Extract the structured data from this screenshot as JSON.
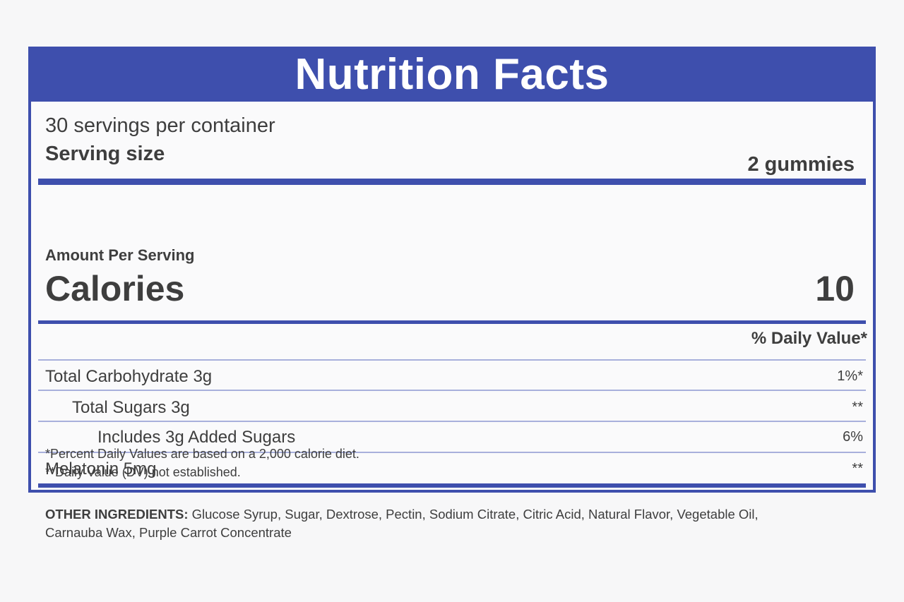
{
  "label": {
    "title": "Nutrition Facts",
    "servings_per_container": "30 servings per container",
    "serving_size_label": "Serving size",
    "serving_size_value": "2 gummies",
    "amount_per_serving": "Amount Per Serving",
    "calories_label": "Calories",
    "calories_value": "10",
    "daily_value_header": "% Daily Value*",
    "rows": [
      {
        "label": "Total Carbohydrate 3g",
        "value": "1%*"
      },
      {
        "label": "Total Sugars 3g",
        "value": "**"
      },
      {
        "label": "Includes 3g Added Sugars",
        "value": "6%"
      },
      {
        "label": "Melatonin 5mg",
        "value": "**"
      }
    ],
    "footnotes": [
      "*Percent Daily Values are based on a 2,000 calorie diet.",
      "**Daily Value (DV) not established."
    ]
  },
  "ingredients": {
    "heading": "OTHER INGREDIENTS:",
    "text": " Glucose Syrup, Sugar, Dextrose, Pectin, Sodium Citrate, Citric Acid, Natural Flavor, Vegetable Oil, Carnauba Wax, Purple Carrot Concentrate"
  },
  "colors": {
    "brand_blue": "#3e4fad",
    "text": "#3e3e3e",
    "background": "#f7f7f8"
  }
}
